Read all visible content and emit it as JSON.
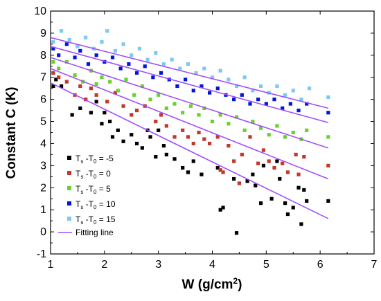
{
  "chart_data": {
    "type": "scatter",
    "xlabel_base": "W (g/cm",
    "xlabel_sup": "2",
    "xlabel_tail": ")",
    "ylabel": "Constant C (K)",
    "xlim": [
      1,
      7
    ],
    "ylim": [
      -1,
      10
    ],
    "x_ticks": [
      1,
      2,
      3,
      4,
      5,
      6,
      7
    ],
    "y_ticks": [
      -1,
      0,
      1,
      2,
      3,
      4,
      5,
      6,
      7,
      8,
      9,
      10
    ],
    "grid": false,
    "legend_position": "bottom-left",
    "fit_color": "#a24dff",
    "series": [
      {
        "legend": {
          "t": "T",
          "s": "s",
          "mid": " -T",
          "z": "0",
          "val": " = -5"
        },
        "color": "#000000",
        "fit": [
          [
            1.0,
            6.75
          ],
          [
            6.15,
            0.6
          ]
        ],
        "points": [
          [
            1.05,
            6.6
          ],
          [
            1.1,
            6.9
          ],
          [
            1.2,
            6.6
          ],
          [
            1.4,
            5.3
          ],
          [
            1.55,
            5.6
          ],
          [
            1.65,
            6.0
          ],
          [
            1.75,
            5.4
          ],
          [
            1.85,
            5.9
          ],
          [
            1.95,
            4.9
          ],
          [
            2.0,
            5.4
          ],
          [
            2.1,
            5.0
          ],
          [
            2.15,
            4.3
          ],
          [
            2.25,
            4.6
          ],
          [
            2.35,
            4.1
          ],
          [
            2.5,
            4.4
          ],
          [
            2.6,
            4.0
          ],
          [
            2.7,
            3.8
          ],
          [
            2.8,
            4.6
          ],
          [
            2.85,
            4.3
          ],
          [
            2.95,
            3.4
          ],
          [
            3.0,
            4.6
          ],
          [
            3.1,
            3.9
          ],
          [
            3.15,
            3.5
          ],
          [
            3.3,
            3.3
          ],
          [
            3.45,
            2.9
          ],
          [
            3.55,
            2.7
          ],
          [
            3.65,
            3.2
          ],
          [
            3.8,
            2.6
          ],
          [
            4.1,
            2.9
          ],
          [
            4.15,
            1.0
          ],
          [
            4.2,
            1.1
          ],
          [
            4.4,
            2.4
          ],
          [
            4.45,
            -0.05
          ],
          [
            4.65,
            2.3
          ],
          [
            4.75,
            2.6
          ],
          [
            4.8,
            2.1
          ],
          [
            4.9,
            1.3
          ],
          [
            4.95,
            3.0
          ],
          [
            5.1,
            1.5
          ],
          [
            5.2,
            3.2
          ],
          [
            5.25,
            2.4
          ],
          [
            5.35,
            1.3
          ],
          [
            5.4,
            0.8
          ],
          [
            5.5,
            1.1
          ],
          [
            5.6,
            2.0
          ],
          [
            5.65,
            0.35
          ],
          [
            5.7,
            1.9
          ],
          [
            5.75,
            1.4
          ],
          [
            6.15,
            1.4
          ]
        ]
      },
      {
        "legend": {
          "t": "T",
          "s": "s",
          "mid": " -T",
          "z": "0",
          "val": " = 0"
        },
        "color": "#c0392b",
        "fit": [
          [
            1.0,
            7.4
          ],
          [
            6.15,
            2.4
          ]
        ],
        "points": [
          [
            1.05,
            7.2
          ],
          [
            1.15,
            7.0
          ],
          [
            1.3,
            6.8
          ],
          [
            1.45,
            6.2
          ],
          [
            1.55,
            6.6
          ],
          [
            1.65,
            6.0
          ],
          [
            1.75,
            6.5
          ],
          [
            1.85,
            6.2
          ],
          [
            2.05,
            5.9
          ],
          [
            2.2,
            6.3
          ],
          [
            2.35,
            5.7
          ],
          [
            2.5,
            5.3
          ],
          [
            2.6,
            5.5
          ],
          [
            2.75,
            5.7
          ],
          [
            2.95,
            5.0
          ],
          [
            3.05,
            5.3
          ],
          [
            3.15,
            4.8
          ],
          [
            3.3,
            4.3
          ],
          [
            3.45,
            4.6
          ],
          [
            3.55,
            4.3
          ],
          [
            3.65,
            4.0
          ],
          [
            3.75,
            4.5
          ],
          [
            3.85,
            4.2
          ],
          [
            3.95,
            4.0
          ],
          [
            4.1,
            4.3
          ],
          [
            4.15,
            2.8
          ],
          [
            4.2,
            2.7
          ],
          [
            4.3,
            3.9
          ],
          [
            4.4,
            3.2
          ],
          [
            4.5,
            2.2
          ],
          [
            4.55,
            3.5
          ],
          [
            4.7,
            4.3
          ],
          [
            4.85,
            3.1
          ],
          [
            4.95,
            3.7
          ],
          [
            5.05,
            3.2
          ],
          [
            5.15,
            2.9
          ],
          [
            5.3,
            3.1
          ],
          [
            5.4,
            2.7
          ],
          [
            5.55,
            3.5
          ],
          [
            5.6,
            2.6
          ],
          [
            5.7,
            3.4
          ],
          [
            6.15,
            3.0
          ]
        ]
      },
      {
        "legend": {
          "t": "T",
          "s": "s",
          "mid": " -T",
          "z": "0",
          "val": " = 5"
        },
        "color": "#6ad12e",
        "fit": [
          [
            1.0,
            7.9
          ],
          [
            6.15,
            3.8
          ]
        ],
        "points": [
          [
            1.05,
            7.7
          ],
          [
            1.15,
            7.4
          ],
          [
            1.3,
            7.7
          ],
          [
            1.45,
            7.1
          ],
          [
            1.6,
            6.8
          ],
          [
            1.75,
            7.3
          ],
          [
            1.85,
            6.7
          ],
          [
            1.95,
            7.0
          ],
          [
            2.1,
            6.8
          ],
          [
            2.25,
            6.4
          ],
          [
            2.4,
            6.9
          ],
          [
            2.55,
            6.2
          ],
          [
            2.7,
            6.6
          ],
          [
            2.85,
            6.0
          ],
          [
            3.0,
            6.2
          ],
          [
            3.15,
            5.6
          ],
          [
            3.3,
            5.8
          ],
          [
            3.45,
            5.4
          ],
          [
            3.6,
            5.7
          ],
          [
            3.75,
            5.3
          ],
          [
            3.85,
            5.6
          ],
          [
            4.0,
            5.0
          ],
          [
            4.15,
            5.3
          ],
          [
            4.3,
            4.9
          ],
          [
            4.45,
            5.2
          ],
          [
            4.6,
            4.6
          ],
          [
            4.75,
            5.0
          ],
          [
            4.9,
            4.7
          ],
          [
            5.05,
            4.4
          ],
          [
            5.2,
            4.8
          ],
          [
            5.35,
            4.3
          ],
          [
            5.5,
            4.5
          ],
          [
            5.65,
            4.2
          ],
          [
            5.75,
            4.6
          ],
          [
            6.15,
            4.3
          ]
        ]
      },
      {
        "legend": {
          "t": "T",
          "s": "s",
          "mid": " -T",
          "z": "0",
          "val": " = 10"
        },
        "color": "#0018d6",
        "fit": [
          [
            1.0,
            8.4
          ],
          [
            6.15,
            4.95
          ]
        ],
        "points": [
          [
            1.05,
            8.3
          ],
          [
            1.15,
            8.0
          ],
          [
            1.3,
            8.5
          ],
          [
            1.45,
            7.9
          ],
          [
            1.55,
            8.2
          ],
          [
            1.7,
            7.6
          ],
          [
            1.85,
            8.0
          ],
          [
            2.0,
            7.7
          ],
          [
            2.15,
            7.9
          ],
          [
            2.3,
            7.4
          ],
          [
            2.45,
            7.6
          ],
          [
            2.6,
            7.2
          ],
          [
            2.75,
            7.5
          ],
          [
            2.9,
            7.0
          ],
          [
            3.05,
            7.2
          ],
          [
            3.2,
            6.9
          ],
          [
            3.35,
            6.6
          ],
          [
            3.5,
            6.9
          ],
          [
            3.65,
            6.4
          ],
          [
            3.8,
            6.6
          ],
          [
            3.95,
            6.3
          ],
          [
            4.1,
            6.5
          ],
          [
            4.25,
            6.2
          ],
          [
            4.4,
            6.0
          ],
          [
            4.55,
            6.2
          ],
          [
            4.7,
            5.8
          ],
          [
            4.85,
            6.0
          ],
          [
            5.0,
            5.8
          ],
          [
            5.15,
            6.0
          ],
          [
            5.3,
            5.6
          ],
          [
            5.45,
            5.8
          ],
          [
            5.6,
            5.5
          ],
          [
            5.75,
            5.8
          ],
          [
            6.15,
            5.4
          ]
        ]
      },
      {
        "legend": {
          "t": "T",
          "s": "s",
          "mid": " -T",
          "z": "0",
          "val": " = 15"
        },
        "color": "#7ec8f2",
        "fit": [
          [
            1.0,
            8.8
          ],
          [
            6.15,
            5.6
          ]
        ],
        "points": [
          [
            1.05,
            8.6
          ],
          [
            1.2,
            9.1
          ],
          [
            1.35,
            8.7
          ],
          [
            1.5,
            8.4
          ],
          [
            1.65,
            8.8
          ],
          [
            1.8,
            8.3
          ],
          [
            1.95,
            8.6
          ],
          [
            2.05,
            9.1
          ],
          [
            2.2,
            8.2
          ],
          [
            2.35,
            8.5
          ],
          [
            2.5,
            8.0
          ],
          [
            2.65,
            8.3
          ],
          [
            2.8,
            7.8
          ],
          [
            2.95,
            8.1
          ],
          [
            3.1,
            7.6
          ],
          [
            3.25,
            7.8
          ],
          [
            3.4,
            7.4
          ],
          [
            3.55,
            7.6
          ],
          [
            3.7,
            7.2
          ],
          [
            3.85,
            7.4
          ],
          [
            4.0,
            7.0
          ],
          [
            4.15,
            7.3
          ],
          [
            4.3,
            6.9
          ],
          [
            4.45,
            6.6
          ],
          [
            4.6,
            7.0
          ],
          [
            4.75,
            6.4
          ],
          [
            4.9,
            6.6
          ],
          [
            5.05,
            6.3
          ],
          [
            5.2,
            6.6
          ],
          [
            5.35,
            6.2
          ],
          [
            5.5,
            6.4
          ],
          [
            5.65,
            6.0
          ],
          [
            5.8,
            6.5
          ],
          [
            6.15,
            6.1
          ]
        ]
      }
    ],
    "fit_legend": "Fitting line"
  }
}
